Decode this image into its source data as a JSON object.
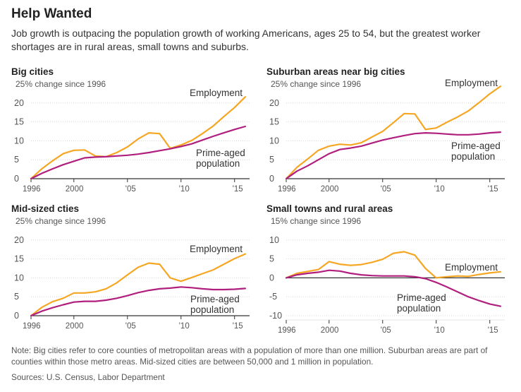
{
  "header": {
    "title": "Help Wanted",
    "subtitle": "Job growth is outpacing the population growth of working Americans, ages 25 to 54, but the greatest worker shortages are in rural areas, small towns and suburbs."
  },
  "colors": {
    "employment": "#f5a623",
    "population": "#b01f7e",
    "axis": "#333333",
    "grid": "#cccccc",
    "text": "#555555"
  },
  "chart_data": [
    {
      "type": "line",
      "title": "Big cities",
      "ylabel": "25% change since 1996",
      "ylim": [
        0,
        25
      ],
      "yticks": [
        0,
        5,
        10,
        15,
        20
      ],
      "xticks": [
        1996,
        2000,
        2005,
        2010,
        2015
      ],
      "xtick_labels": [
        "1996",
        "2000",
        "'05",
        "'10",
        "'15"
      ],
      "x": [
        1996,
        1997,
        1998,
        1999,
        2000,
        2001,
        2002,
        2003,
        2004,
        2005,
        2006,
        2007,
        2008,
        2009,
        2010,
        2011,
        2012,
        2013,
        2014,
        2015,
        2016
      ],
      "series": [
        {
          "name": "Employment",
          "label_lines": [
            "Employment"
          ],
          "values": [
            0,
            2.6,
            4.7,
            6.6,
            7.5,
            7.6,
            6.0,
            5.8,
            6.9,
            8.4,
            10.5,
            12.1,
            11.9,
            8.0,
            8.9,
            10.1,
            11.9,
            13.9,
            16.4,
            18.8,
            21.6
          ]
        },
        {
          "name": "Prime-aged population",
          "label_lines": [
            "Prime-aged",
            "population"
          ],
          "values": [
            0,
            1.4,
            2.6,
            3.7,
            4.6,
            5.5,
            5.7,
            5.8,
            6.0,
            6.2,
            6.5,
            6.9,
            7.4,
            7.9,
            8.5,
            9.2,
            10.2,
            11.2,
            12.1,
            13.0,
            13.8
          ]
        }
      ]
    },
    {
      "type": "line",
      "title": "Suburban areas near big cities",
      "ylabel": "25% change since 1996",
      "ylim": [
        0,
        25
      ],
      "yticks": [
        0,
        5,
        10,
        15,
        20
      ],
      "xticks": [
        1996,
        2000,
        2005,
        2010,
        2015
      ],
      "xtick_labels": [
        "1996",
        "2000",
        "'05",
        "'10",
        "'15"
      ],
      "x": [
        1996,
        1997,
        1998,
        1999,
        2000,
        2001,
        2002,
        2003,
        2004,
        2005,
        2006,
        2007,
        2008,
        2009,
        2010,
        2011,
        2012,
        2013,
        2014,
        2015,
        2016
      ],
      "series": [
        {
          "name": "Employment",
          "label_lines": [
            "Employment"
          ],
          "values": [
            0,
            3.0,
            5.2,
            7.5,
            8.6,
            9.1,
            8.9,
            9.5,
            11.0,
            12.5,
            14.8,
            17.2,
            17.1,
            13.0,
            13.4,
            14.9,
            16.3,
            17.9,
            20.1,
            22.4,
            24.4
          ]
        },
        {
          "name": "Prime-aged population",
          "label_lines": [
            "Prime-aged",
            "population"
          ],
          "values": [
            0,
            2.0,
            3.4,
            5.0,
            6.6,
            7.7,
            8.1,
            8.6,
            9.4,
            10.2,
            10.8,
            11.4,
            11.9,
            12.1,
            12.0,
            11.8,
            11.6,
            11.6,
            11.8,
            12.1,
            12.3
          ]
        }
      ]
    },
    {
      "type": "line",
      "title": "Mid-sized cties",
      "ylabel": "25% change since 1996",
      "ylim": [
        0,
        25
      ],
      "yticks": [
        0,
        5,
        10,
        15,
        20
      ],
      "xticks": [
        1996,
        2000,
        2005,
        2010,
        2015
      ],
      "xtick_labels": [
        "1996",
        "2000",
        "'05",
        "'10",
        "'15"
      ],
      "x": [
        1996,
        1997,
        1998,
        1999,
        2000,
        2001,
        2002,
        2003,
        2004,
        2005,
        2006,
        2007,
        2008,
        2009,
        2010,
        2011,
        2012,
        2013,
        2014,
        2015,
        2016
      ],
      "series": [
        {
          "name": "Employment",
          "label_lines": [
            "Employment"
          ],
          "values": [
            0,
            2.2,
            3.7,
            4.6,
            6.0,
            6.0,
            6.3,
            7.1,
            8.7,
            10.8,
            12.8,
            13.9,
            13.6,
            10.0,
            9.1,
            10.1,
            11.1,
            12.1,
            13.6,
            15.1,
            16.3
          ]
        },
        {
          "name": "Prime-aged population",
          "label_lines": [
            "Prime-aged",
            "population"
          ],
          "values": [
            0,
            1.2,
            2.1,
            2.9,
            3.6,
            3.8,
            3.8,
            4.1,
            4.6,
            5.3,
            6.1,
            6.7,
            7.1,
            7.3,
            7.6,
            7.4,
            7.1,
            6.9,
            6.9,
            7.0,
            7.2
          ]
        }
      ]
    },
    {
      "type": "line",
      "title": "Small towns and rural areas",
      "ylabel": "15% change since 1996",
      "ylim": [
        -10,
        15
      ],
      "yticks": [
        -10,
        -5,
        0,
        5,
        10
      ],
      "xticks": [
        1996,
        2000,
        2005,
        2010,
        2015
      ],
      "xtick_labels": [
        "1996",
        "2000",
        "'05",
        "'10",
        "'15"
      ],
      "x": [
        1996,
        1997,
        1998,
        1999,
        2000,
        2001,
        2002,
        2003,
        2004,
        2005,
        2006,
        2007,
        2008,
        2009,
        2010,
        2011,
        2012,
        2013,
        2014,
        2015,
        2016
      ],
      "series": [
        {
          "name": "Employment",
          "label_lines": [
            "Employment"
          ],
          "values": [
            0,
            1.2,
            1.7,
            2.2,
            4.3,
            3.6,
            3.3,
            3.5,
            4.1,
            4.9,
            6.5,
            6.9,
            6.0,
            2.5,
            0.0,
            0.3,
            0.5,
            0.4,
            0.9,
            1.3,
            1.6
          ]
        },
        {
          "name": "Prime-aged population",
          "label_lines": [
            "Prime-aged",
            "population"
          ],
          "values": [
            0,
            0.8,
            1.2,
            1.5,
            2.0,
            1.8,
            1.2,
            0.8,
            0.6,
            0.5,
            0.5,
            0.5,
            0.3,
            -0.2,
            -1.2,
            -2.4,
            -3.7,
            -5.0,
            -6.0,
            -6.9,
            -7.5
          ]
        }
      ]
    }
  ],
  "footer": {
    "note": "Note: Big cities refer to core counties of metropolitan areas with a population of more than one million. Suburban areas are part of counties within those metro areas. Mid-sized cities are between 50,000 and 1 million in population.",
    "source": "Sources: U.S. Census, Labor Department"
  }
}
